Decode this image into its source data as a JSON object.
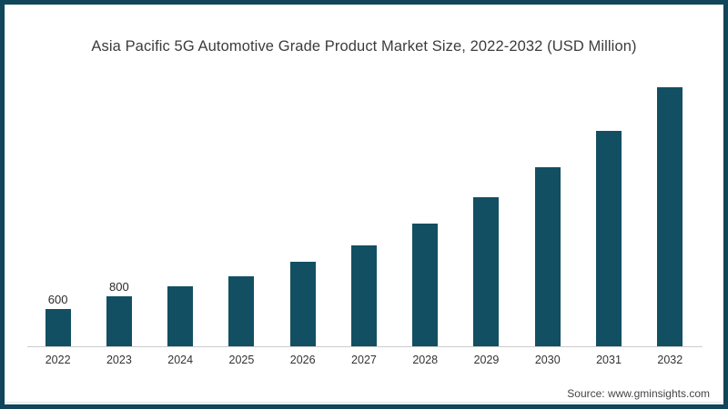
{
  "frame": {
    "border_color": "#11455a",
    "background_color": "#ffffff"
  },
  "chart_data": {
    "type": "bar",
    "title": "Asia Pacific 5G Automotive Grade Product Market Size, 2022-2032 (USD Million)",
    "categories": [
      "2022",
      "2023",
      "2024",
      "2025",
      "2026",
      "2027",
      "2028",
      "2029",
      "2030",
      "2031",
      "2032"
    ],
    "values": [
      600,
      800,
      950,
      1120,
      1350,
      1610,
      1950,
      2380,
      2860,
      3430,
      4130
    ],
    "data_labels": [
      "600",
      "800",
      "",
      "",
      "",
      "",
      "",
      "",
      "",
      "",
      ""
    ],
    "xlabel": "",
    "ylabel": "",
    "ylim": [
      0,
      4200
    ],
    "grid": false,
    "legend": false,
    "bar_color": "#124f63",
    "axis_line_color": "#cbcbcb"
  },
  "footer": {
    "source": "Source: www.gminsights.com"
  }
}
